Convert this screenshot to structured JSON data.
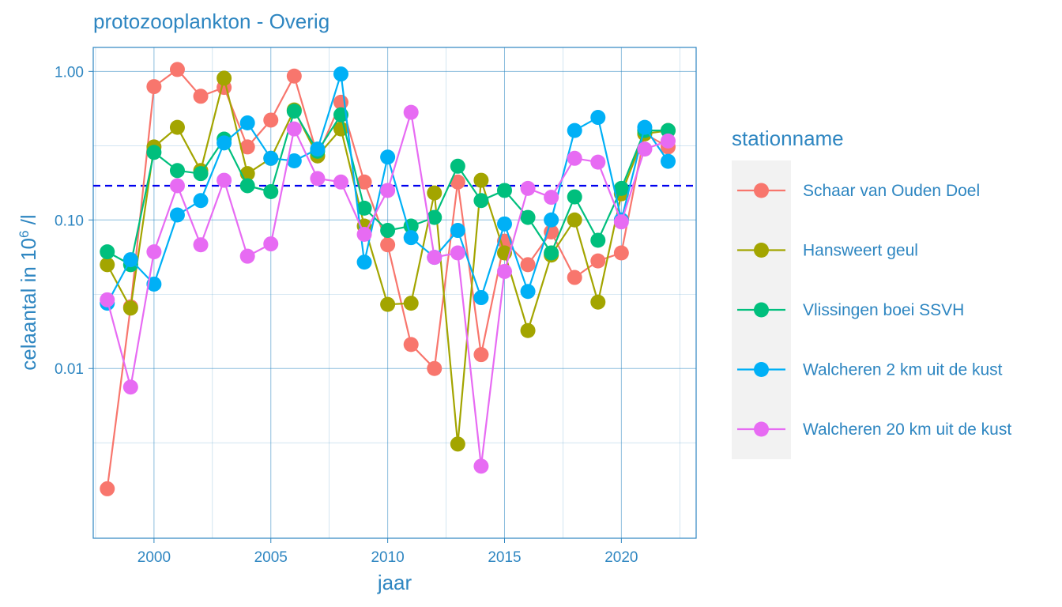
{
  "chart_data": {
    "type": "line",
    "title": "protozooplankton - Overig",
    "xlabel": "jaar",
    "ylabel": "celaantal in  10",
    "ylabel_sup": "6",
    "ylabel_suffix": " /l",
    "y_scale": "log10",
    "xlim": [
      1997.4,
      2023.2
    ],
    "ylim": [
      0.00072,
      1.45
    ],
    "x_ticks": [
      2000,
      2005,
      2010,
      2015,
      2020
    ],
    "x_tick_labels": [
      "2000",
      "2005",
      "2010",
      "2015",
      "2020"
    ],
    "y_ticks": [
      0.01,
      0.1,
      1.0
    ],
    "y_tick_labels": [
      "0.01",
      "0.10",
      "1.00"
    ],
    "grid": true,
    "reference_line": {
      "value": 0.17,
      "color": "#0000ee",
      "style": "dashed"
    },
    "legend": {
      "title": "stationname",
      "position": "right"
    },
    "x": [
      1998,
      1999,
      2000,
      2001,
      2002,
      2003,
      2004,
      2005,
      2006,
      2007,
      2008,
      2009,
      2010,
      2011,
      2012,
      2013,
      2014,
      2015,
      2016,
      2017,
      2018,
      2019,
      2020,
      2021,
      2022
    ],
    "series": [
      {
        "name": "Schaar van Ouden Doel",
        "color": "#F8766D",
        "values": [
          0.00155,
          0.026,
          0.79,
          1.03,
          0.68,
          0.78,
          0.31,
          0.47,
          0.93,
          0.27,
          0.62,
          0.18,
          0.068,
          0.0145,
          0.01,
          0.18,
          0.0124,
          0.072,
          0.05,
          0.083,
          0.041,
          0.053,
          0.06,
          0.38,
          0.31
        ]
      },
      {
        "name": "Hansweert geul",
        "color": "#A3A500",
        "values": [
          0.05,
          0.0255,
          0.31,
          0.42,
          0.215,
          0.9,
          0.205,
          0.26,
          0.55,
          0.27,
          0.41,
          0.091,
          0.027,
          0.0275,
          0.152,
          0.0031,
          0.185,
          0.06,
          0.018,
          0.058,
          0.1,
          0.028,
          0.15,
          0.38,
          0.4
        ]
      },
      {
        "name": "Vlissingen boei SSVH",
        "color": "#00BF7D",
        "values": [
          0.061,
          0.05,
          0.285,
          0.215,
          0.205,
          0.35,
          0.17,
          0.155,
          0.54,
          0.29,
          0.51,
          0.12,
          0.085,
          0.091,
          0.104,
          0.23,
          0.135,
          0.158,
          0.104,
          0.06,
          0.143,
          0.073,
          0.163,
          0.4,
          0.4
        ]
      },
      {
        "name": "Walcheren 2 km uit de kust",
        "color": "#00B0F6",
        "values": [
          0.0275,
          0.054,
          0.037,
          0.108,
          0.135,
          0.33,
          0.45,
          0.26,
          0.25,
          0.3,
          0.96,
          0.052,
          0.265,
          0.076,
          0.056,
          0.085,
          0.03,
          0.094,
          0.033,
          0.1,
          0.4,
          0.49,
          0.1,
          0.42,
          0.248
        ]
      },
      {
        "name": "Walcheren 20 km uit de kust",
        "color": "#E76BF3",
        "values": [
          0.029,
          0.0075,
          0.061,
          0.17,
          0.068,
          0.185,
          0.057,
          0.069,
          0.41,
          0.19,
          0.18,
          0.08,
          0.158,
          0.53,
          0.056,
          0.06,
          0.0022,
          0.045,
          0.163,
          0.142,
          0.26,
          0.245,
          0.097,
          0.3,
          0.34
        ]
      }
    ]
  }
}
